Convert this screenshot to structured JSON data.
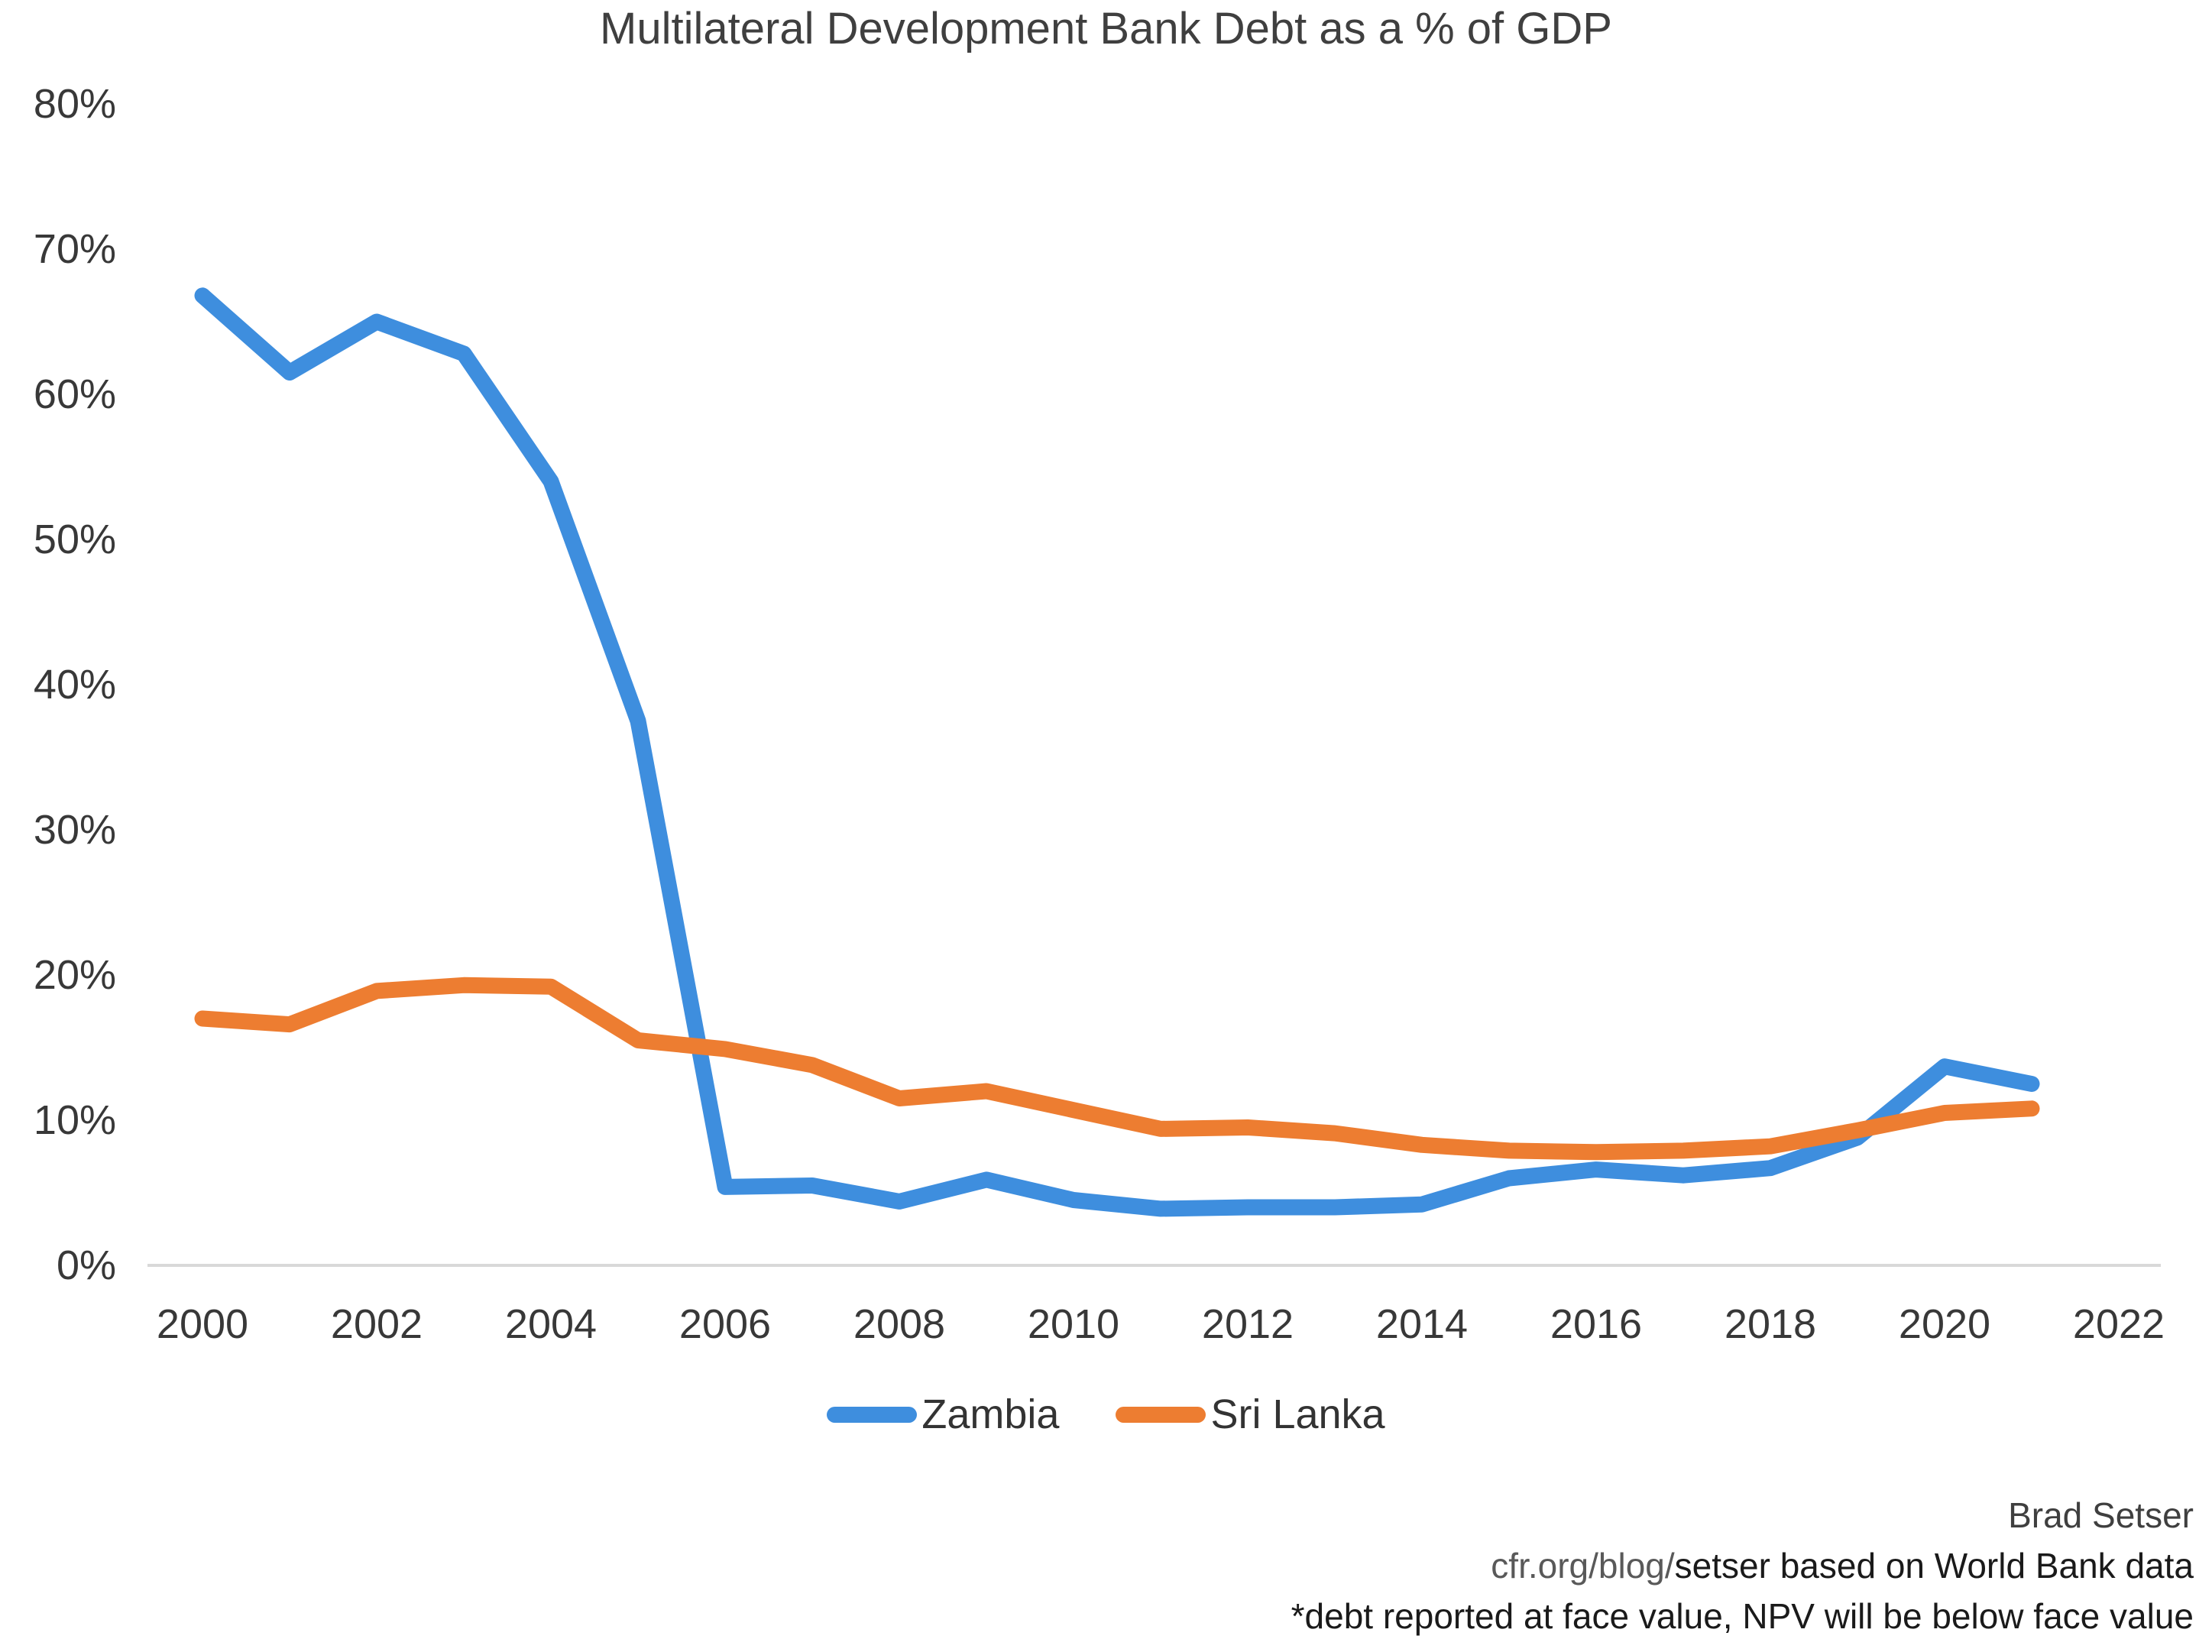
{
  "title": "Multilateral Development Bank Debt as a % of GDP",
  "chart_data": {
    "type": "line",
    "title": "Multilateral Development Bank Debt as a % of GDP",
    "xlabel": "",
    "ylabel": "",
    "x": [
      2000,
      2001,
      2002,
      2003,
      2004,
      2005,
      2006,
      2007,
      2008,
      2009,
      2010,
      2011,
      2012,
      2013,
      2014,
      2015,
      2016,
      2017,
      2018,
      2019,
      2020,
      2021
    ],
    "series": [
      {
        "name": "Zambia",
        "color": "#3e8ede",
        "values": [
          66.8,
          61.5,
          65.0,
          62.8,
          54.0,
          37.5,
          5.4,
          5.5,
          4.4,
          5.9,
          4.5,
          3.9,
          4.0,
          4.0,
          4.2,
          6.0,
          6.6,
          6.2,
          6.7,
          8.8,
          13.7,
          12.5
        ]
      },
      {
        "name": "Sri Lanka",
        "color": "#ed7d31",
        "values": [
          17.0,
          16.6,
          18.9,
          19.3,
          19.2,
          15.5,
          14.9,
          13.8,
          11.5,
          12.0,
          10.7,
          9.4,
          9.5,
          9.1,
          8.3,
          7.9,
          7.8,
          7.9,
          8.2,
          9.3,
          10.5,
          10.8
        ]
      }
    ],
    "ylim": [
      0,
      80
    ],
    "y_ticks": [
      {
        "label": "80%",
        "value": 80
      },
      {
        "label": "70%",
        "value": 70
      },
      {
        "label": "60%",
        "value": 60
      },
      {
        "label": "50%",
        "value": 50
      },
      {
        "label": "40%",
        "value": 40
      },
      {
        "label": "30%",
        "value": 30
      },
      {
        "label": "20%",
        "value": 20
      },
      {
        "label": "10%",
        "value": 10
      },
      {
        "label": "0%",
        "value": 0
      }
    ],
    "x_ticks": [
      {
        "label": "2000",
        "value": 2000
      },
      {
        "label": "2002",
        "value": 2002
      },
      {
        "label": "2004",
        "value": 2004
      },
      {
        "label": "2006",
        "value": 2006
      },
      {
        "label": "2008",
        "value": 2008
      },
      {
        "label": "2010",
        "value": 2010
      },
      {
        "label": "2012",
        "value": 2012
      },
      {
        "label": "2014",
        "value": 2014
      },
      {
        "label": "2016",
        "value": 2016
      },
      {
        "label": "2018",
        "value": 2018
      },
      {
        "label": "2020",
        "value": 2020
      },
      {
        "label": "2022",
        "value": 2022
      }
    ],
    "grid": false,
    "legend_position": "bottom",
    "axis_line_color": "#d9d9d9"
  },
  "legend": {
    "items": [
      {
        "label": "Zambia",
        "color": "#3e8ede"
      },
      {
        "label": "Sri Lanka",
        "color": "#ed7d31"
      }
    ]
  },
  "footer": {
    "byline": "Brad Setser",
    "source_url_part": "cfr.org/blog/",
    "source_rest": "setser based on World Bank data",
    "note": "*debt reported at face value, NPV will be below face value"
  }
}
